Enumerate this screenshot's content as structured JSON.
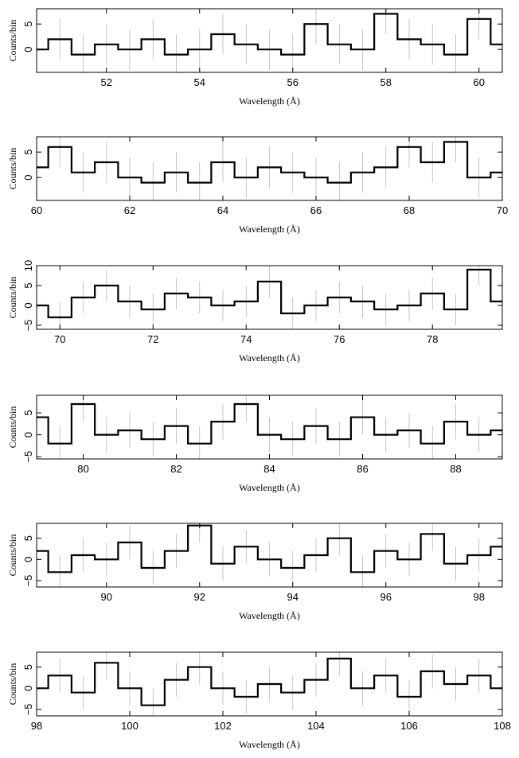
{
  "chart_data": [
    {
      "type": "line",
      "xlabel": "Wavelength (Å)",
      "ylabel": "Counts/bin",
      "xlim": [
        50.5,
        60.5
      ],
      "ylim": [
        -4.5,
        8
      ],
      "xticks": [
        "52",
        "54",
        "56",
        "58",
        "60"
      ],
      "yticks": [
        "0",
        "5"
      ],
      "series": [
        {
          "x": [
            50.5,
            51,
            51.5,
            52,
            52.5,
            53,
            53.5,
            54,
            54.5,
            55,
            55.5,
            56,
            56.5,
            57,
            57.5,
            58,
            58.5,
            59,
            59.5,
            60,
            60.5
          ],
          "values": [
            0,
            2,
            -1,
            1,
            0,
            2,
            -1,
            0,
            3,
            1,
            0,
            -1,
            5,
            1,
            0,
            7,
            2,
            1,
            -1,
            6,
            1
          ]
        }
      ]
    },
    {
      "type": "line",
      "xlabel": "Wavelength (Å)",
      "ylabel": "Counts/bin",
      "xlim": [
        60,
        70
      ],
      "ylim": [
        -4.5,
        8
      ],
      "xticks": [
        "60",
        "62",
        "64",
        "66",
        "68",
        "70"
      ],
      "yticks": [
        "0",
        "5"
      ],
      "series": [
        {
          "x": [
            60,
            60.5,
            61,
            61.5,
            62,
            62.5,
            63,
            63.5,
            64,
            64.5,
            65,
            65.5,
            66,
            66.5,
            67,
            67.5,
            68,
            68.5,
            69,
            69.5,
            70
          ],
          "values": [
            2,
            6,
            1,
            3,
            0,
            -1,
            1,
            -1,
            3,
            0,
            2,
            1,
            0,
            -1,
            1,
            2,
            6,
            3,
            7,
            0,
            1
          ]
        }
      ]
    },
    {
      "type": "line",
      "xlabel": "Wavelength (Å)",
      "ylabel": "Counts/bin",
      "xlim": [
        69.5,
        79.5
      ],
      "ylim": [
        -6,
        10
      ],
      "xticks": [
        "70",
        "72",
        "74",
        "76",
        "78"
      ],
      "yticks": [
        "−5",
        "0",
        "5",
        "10"
      ],
      "series": [
        {
          "x": [
            69.5,
            70,
            70.5,
            71,
            71.5,
            72,
            72.5,
            73,
            73.5,
            74,
            74.5,
            75,
            75.5,
            76,
            76.5,
            77,
            77.5,
            78,
            78.5,
            79,
            79.5
          ],
          "values": [
            0,
            -3,
            2,
            5,
            1,
            -1,
            3,
            2,
            0,
            1,
            6,
            -2,
            0,
            2,
            1,
            -1,
            0,
            3,
            -1,
            9,
            1
          ]
        }
      ]
    },
    {
      "type": "line",
      "xlabel": "Wavelength (Å)",
      "ylabel": "Counts/bin",
      "xlim": [
        79,
        89
      ],
      "ylim": [
        -5.5,
        9
      ],
      "xticks": [
        "80",
        "82",
        "84",
        "86",
        "88"
      ],
      "yticks": [
        "−5",
        "0",
        "5"
      ],
      "series": [
        {
          "x": [
            79,
            79.5,
            80,
            80.5,
            81,
            81.5,
            82,
            82.5,
            83,
            83.5,
            84,
            84.5,
            85,
            85.5,
            86,
            86.5,
            87,
            87.5,
            88,
            88.5,
            89
          ],
          "values": [
            4,
            -2,
            7,
            0,
            1,
            -1,
            2,
            -2,
            3,
            7,
            0,
            -1,
            2,
            -1,
            4,
            0,
            1,
            -2,
            3,
            0,
            1
          ]
        }
      ]
    },
    {
      "type": "line",
      "xlabel": "Wavelength (Å)",
      "ylabel": "Counts/bin",
      "xlim": [
        88.5,
        98.5
      ],
      "ylim": [
        -6.5,
        8.5
      ],
      "xticks": [
        "90",
        "92",
        "94",
        "96",
        "98"
      ],
      "yticks": [
        "−5",
        "0",
        "5"
      ],
      "series": [
        {
          "x": [
            88.5,
            89,
            89.5,
            90,
            90.5,
            91,
            91.5,
            92,
            92.5,
            93,
            93.5,
            94,
            94.5,
            95,
            95.5,
            96,
            96.5,
            97,
            97.5,
            98,
            98.5
          ],
          "values": [
            2,
            -3,
            1,
            0,
            4,
            -2,
            2,
            8,
            -1,
            3,
            0,
            -2,
            1,
            5,
            -3,
            2,
            0,
            6,
            -1,
            1,
            3
          ]
        }
      ]
    },
    {
      "type": "line",
      "xlabel": "Wavelength (Å)",
      "ylabel": "Counts/bin",
      "xlim": [
        98,
        108
      ],
      "ylim": [
        -6.5,
        8.5
      ],
      "xticks": [
        "98",
        "100",
        "102",
        "104",
        "106",
        "108"
      ],
      "yticks": [
        "−5",
        "0",
        "5"
      ],
      "series": [
        {
          "x": [
            98,
            98.5,
            99,
            99.5,
            100,
            100.5,
            101,
            101.5,
            102,
            102.5,
            103,
            103.5,
            104,
            104.5,
            105,
            105.5,
            106,
            106.5,
            107,
            107.5,
            108
          ],
          "values": [
            0,
            3,
            -1,
            6,
            0,
            -4,
            2,
            5,
            0,
            -2,
            1,
            -1,
            2,
            7,
            0,
            3,
            -2,
            4,
            1,
            3,
            0
          ]
        }
      ]
    }
  ]
}
